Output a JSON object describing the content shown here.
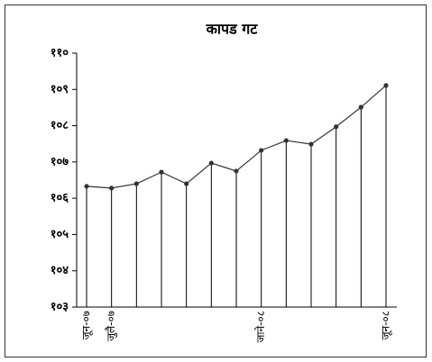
{
  "chart_data": {
    "type": "line",
    "title": "कापड गट",
    "categories": [
      "जून-०७",
      "जुलै-०७",
      null,
      null,
      null,
      null,
      null,
      "जाने-०८",
      null,
      null,
      null,
      null,
      "जून-०८"
    ],
    "series": [
      {
        "name": null,
        "color": "#333333",
        "values": [
          106.33,
          106.28,
          106.4,
          106.72,
          106.4,
          106.97,
          106.75,
          107.32,
          107.59,
          107.49,
          107.97,
          108.51,
          109.11
        ]
      }
    ],
    "ylim": [
      103,
      110
    ],
    "yticks": [
      {
        "value": 103,
        "label": "१०३"
      },
      {
        "value": 104,
        "label": "१०४"
      },
      {
        "value": 105,
        "label": "१०५"
      },
      {
        "value": 106,
        "label": "१०६"
      },
      {
        "value": 107,
        "label": "१०७"
      },
      {
        "value": 108,
        "label": "१०८"
      },
      {
        "value": 109,
        "label": "१०९"
      },
      {
        "value": 110,
        "label": "११०"
      }
    ],
    "drop_lines": true
  }
}
